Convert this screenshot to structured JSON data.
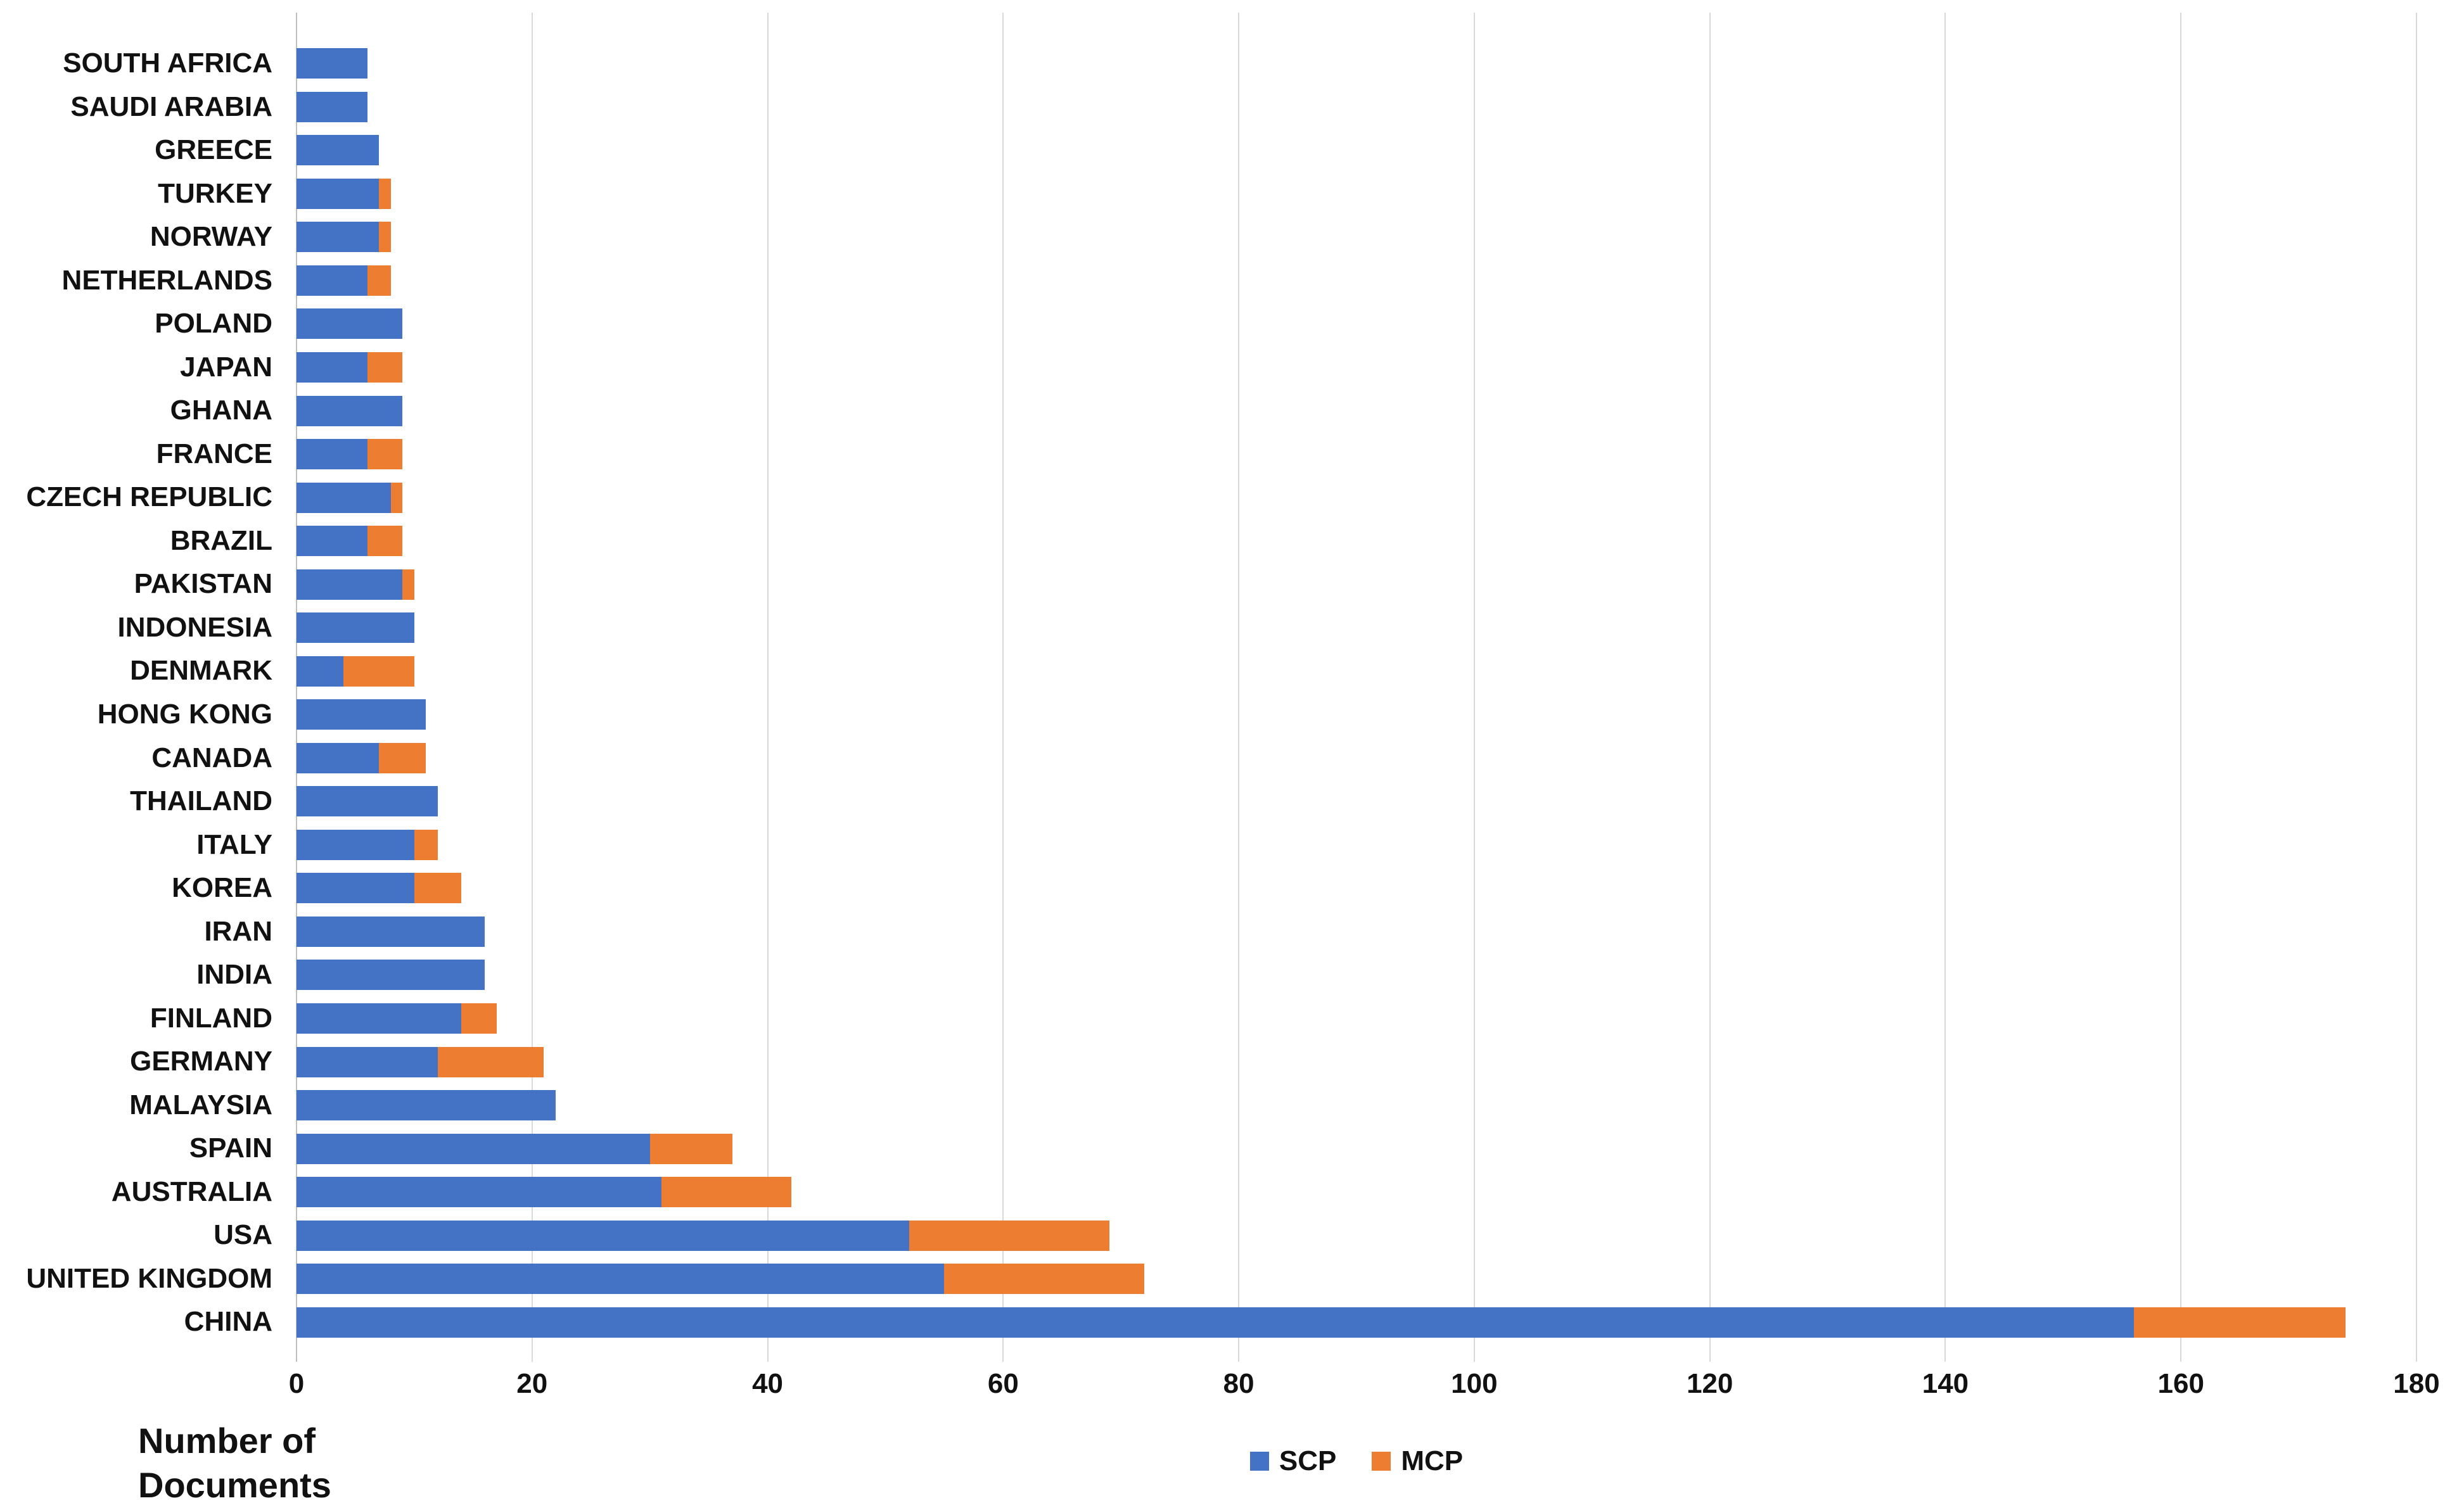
{
  "chart_data": {
    "type": "bar",
    "orientation": "horizontal-stacked",
    "title": "",
    "xlabel": "Number of Documents",
    "ylabel": "",
    "xlim": [
      0,
      180
    ],
    "xticks": [
      0,
      20,
      40,
      60,
      80,
      100,
      120,
      140,
      160,
      180
    ],
    "grid": true,
    "grid_color": "#d9d9d9",
    "legend_position": "bottom",
    "categories": [
      "SOUTH AFRICA",
      "SAUDI ARABIA",
      "GREECE",
      "TURKEY",
      "NORWAY",
      "NETHERLANDS",
      "POLAND",
      "JAPAN",
      "GHANA",
      "FRANCE",
      "CZECH REPUBLIC",
      "BRAZIL",
      "PAKISTAN",
      "INDONESIA",
      "DENMARK",
      "HONG KONG",
      "CANADA",
      "THAILAND",
      "ITALY",
      "KOREA",
      "IRAN",
      "INDIA",
      "FINLAND",
      "GERMANY",
      "MALAYSIA",
      "SPAIN",
      "AUSTRALIA",
      "USA",
      "UNITED KINGDOM",
      "CHINA"
    ],
    "series": [
      {
        "name": "SCP",
        "color": "#4472c4",
        "values": [
          6,
          6,
          7,
          7,
          7,
          6,
          9,
          6,
          9,
          6,
          8,
          6,
          9,
          10,
          4,
          11,
          7,
          12,
          10,
          10,
          16,
          16,
          14,
          12,
          22,
          30,
          31,
          52,
          55,
          156
        ]
      },
      {
        "name": "MCP",
        "color": "#ed7d31",
        "values": [
          0,
          0,
          0,
          1,
          1,
          2,
          0,
          3,
          0,
          3,
          1,
          3,
          1,
          0,
          6,
          0,
          4,
          0,
          2,
          4,
          0,
          0,
          3,
          9,
          0,
          7,
          11,
          17,
          17,
          18
        ]
      }
    ]
  },
  "axis_title": {
    "line1": "Number of",
    "line2": "Documents"
  },
  "legend": {
    "items": [
      {
        "label": "SCP",
        "color": "#4472c4"
      },
      {
        "label": "MCP",
        "color": "#ed7d31"
      }
    ]
  }
}
